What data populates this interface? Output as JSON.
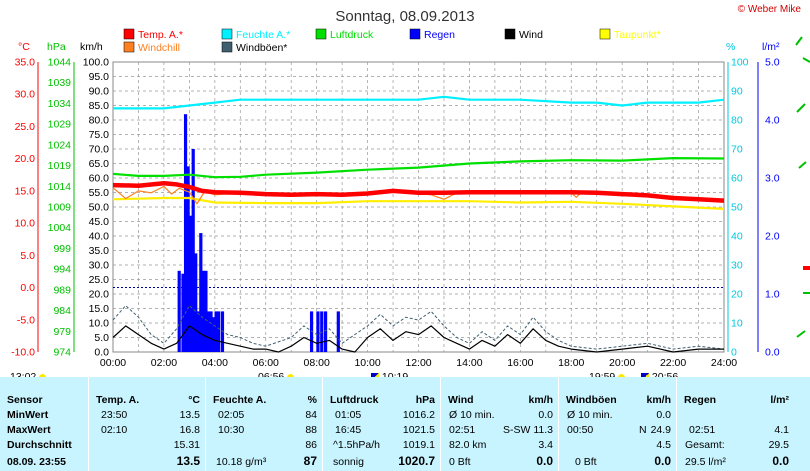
{
  "header": {
    "title": "Sonntag, 08.09.2013",
    "copyright": "© Weber Mike"
  },
  "axis_units": {
    "temp": "°C",
    "pressure": "hPa",
    "wind": "km/h",
    "humidity": "%",
    "rain": "l/m²"
  },
  "legend": [
    {
      "label": "Temp. A.*",
      "color": "#ff0000"
    },
    {
      "label": "Feuchte A.*",
      "color": "#00f0ff"
    },
    {
      "label": "Luftdruck",
      "color": "#00e000"
    },
    {
      "label": "Regen",
      "color": "#0000ff"
    },
    {
      "label": "Wind",
      "color": "#000000"
    },
    {
      "label": "Taupunkt*",
      "color": "#ffff00"
    },
    {
      "label": "Windchill",
      "color": "#ff8020"
    },
    {
      "label": "Windböen*",
      "color": "#406070"
    }
  ],
  "markers": {
    "sunrise": "06:56",
    "sunset": "19:59",
    "moonrise": "10:19",
    "moonset": "20:56",
    "left_time": "13:02"
  },
  "chart_data": {
    "type": "line",
    "title": "Sonntag, 08.09.2013",
    "x_ticks": [
      "00:00",
      "02:00",
      "04:00",
      "06:00",
      "08:00",
      "10:00",
      "12:00",
      "14:00",
      "16:00",
      "18:00",
      "20:00",
      "22:00",
      "24:00"
    ],
    "x_range_hours": [
      0,
      24
    ],
    "axes": {
      "temp": {
        "unit": "°C",
        "range": [
          -10,
          35
        ],
        "ticks": [
          -10,
          -5,
          0,
          5,
          10,
          15,
          20,
          25,
          30,
          35
        ]
      },
      "pressure": {
        "unit": "hPa",
        "range": [
          974,
          1044
        ],
        "ticks": [
          974,
          979,
          984,
          989,
          994,
          999,
          1004,
          1009,
          1014,
          1019,
          1024,
          1029,
          1034,
          1039,
          1044
        ]
      },
      "wind": {
        "unit": "km/h",
        "range": [
          0,
          100
        ],
        "ticks": [
          0,
          5,
          10,
          15,
          20,
          25,
          30,
          35,
          40,
          45,
          50,
          55,
          60,
          65,
          70,
          75,
          80,
          85,
          90,
          95,
          100
        ]
      },
      "humidity": {
        "unit": "%",
        "range": [
          0,
          100
        ],
        "ticks": [
          0,
          10,
          20,
          30,
          40,
          50,
          60,
          70,
          80,
          90,
          100
        ]
      },
      "rain": {
        "unit": "l/m²",
        "range": [
          0,
          5
        ],
        "ticks": [
          "0.0",
          "1.0",
          "2.0",
          "3.0",
          "4.0",
          "5.0"
        ]
      }
    },
    "grid": true,
    "series": [
      {
        "name": "Temp. A.*",
        "axis": "temp",
        "color": "#ff0000",
        "points": [
          [
            0,
            15.9
          ],
          [
            1,
            15.8
          ],
          [
            2,
            16.2
          ],
          [
            2.5,
            16.0
          ],
          [
            3,
            15.6
          ],
          [
            3.5,
            15.0
          ],
          [
            4,
            14.8
          ],
          [
            5,
            14.7
          ],
          [
            6,
            14.5
          ],
          [
            7,
            14.4
          ],
          [
            8,
            14.5
          ],
          [
            9,
            14.4
          ],
          [
            10,
            14.6
          ],
          [
            11,
            15.0
          ],
          [
            12,
            14.7
          ],
          [
            13,
            14.7
          ],
          [
            14,
            14.8
          ],
          [
            15,
            14.8
          ],
          [
            16,
            14.8
          ],
          [
            17,
            14.8
          ],
          [
            18,
            14.8
          ],
          [
            19,
            14.7
          ],
          [
            20,
            14.5
          ],
          [
            21,
            14.3
          ],
          [
            22,
            13.9
          ],
          [
            23,
            13.7
          ],
          [
            24,
            13.5
          ]
        ]
      },
      {
        "name": "Windchill",
        "axis": "temp",
        "color": "#ff8020",
        "points": [
          [
            0,
            15.5
          ],
          [
            0.5,
            13.8
          ],
          [
            1,
            15.0
          ],
          [
            1.5,
            14.7
          ],
          [
            2,
            15.7
          ],
          [
            2.3,
            14.5
          ],
          [
            2.6,
            15.4
          ],
          [
            3,
            14.8
          ],
          [
            3.3,
            13.0
          ],
          [
            3.6,
            14.9
          ],
          [
            4,
            14.4
          ],
          [
            5,
            14.7
          ],
          [
            6,
            14.5
          ],
          [
            7,
            14.4
          ],
          [
            8,
            14.5
          ],
          [
            9,
            14.4
          ],
          [
            10,
            14.6
          ],
          [
            11,
            14.9
          ],
          [
            12.5,
            14.4
          ],
          [
            13,
            13.7
          ],
          [
            13.5,
            14.7
          ],
          [
            14,
            14.8
          ],
          [
            16,
            14.8
          ],
          [
            18,
            14.7
          ],
          [
            18.2,
            14.0
          ],
          [
            18.4,
            14.8
          ],
          [
            20,
            14.5
          ],
          [
            22,
            13.9
          ],
          [
            24,
            13.5
          ]
        ]
      },
      {
        "name": "Taupunkt*",
        "axis": "temp",
        "color": "#ffee00",
        "points": [
          [
            0,
            13.7
          ],
          [
            2,
            13.9
          ],
          [
            3,
            13.9
          ],
          [
            4,
            13.2
          ],
          [
            6,
            13.1
          ],
          [
            8,
            13.1
          ],
          [
            10,
            13.4
          ],
          [
            12,
            13.4
          ],
          [
            14,
            13.4
          ],
          [
            16,
            13.2
          ],
          [
            18,
            13.3
          ],
          [
            20,
            13.0
          ],
          [
            22,
            12.6
          ],
          [
            24,
            12.2
          ]
        ]
      },
      {
        "name": "Feuchte A.*",
        "axis": "humidity",
        "color": "#00f0ff",
        "points": [
          [
            0,
            84
          ],
          [
            1,
            84
          ],
          [
            2,
            84
          ],
          [
            3,
            85
          ],
          [
            4,
            86
          ],
          [
            5,
            87
          ],
          [
            6,
            87
          ],
          [
            8,
            87
          ],
          [
            10,
            87
          ],
          [
            12,
            87
          ],
          [
            13,
            88
          ],
          [
            14,
            87
          ],
          [
            16,
            87
          ],
          [
            18,
            86
          ],
          [
            19,
            86
          ],
          [
            20,
            85
          ],
          [
            21,
            86
          ],
          [
            22,
            86
          ],
          [
            23,
            86
          ],
          [
            24,
            87
          ]
        ]
      },
      {
        "name": "Luftdruck",
        "axis": "pressure",
        "color": "#00e000",
        "points": [
          [
            0,
            1017.0
          ],
          [
            1,
            1016.5
          ],
          [
            2,
            1016.5
          ],
          [
            3,
            1016.8
          ],
          [
            4,
            1016.2
          ],
          [
            5,
            1016.3
          ],
          [
            6,
            1016.8
          ],
          [
            8,
            1017.3
          ],
          [
            10,
            1018.0
          ],
          [
            12,
            1018.5
          ],
          [
            14,
            1019.5
          ],
          [
            16,
            1020.0
          ],
          [
            18,
            1020.3
          ],
          [
            20,
            1020.2
          ],
          [
            22,
            1020.8
          ],
          [
            24,
            1020.7
          ]
        ]
      },
      {
        "name": "Wind",
        "axis": "wind",
        "color": "#000000",
        "points": [
          [
            0,
            5
          ],
          [
            0.5,
            9
          ],
          [
            1,
            6
          ],
          [
            1.5,
            3
          ],
          [
            2,
            1
          ],
          [
            2.5,
            3
          ],
          [
            3,
            9
          ],
          [
            3.5,
            6
          ],
          [
            4,
            4
          ],
          [
            4.5,
            3
          ],
          [
            5,
            2
          ],
          [
            5.5,
            1
          ],
          [
            6,
            1
          ],
          [
            6.5,
            0
          ],
          [
            7,
            2
          ],
          [
            7.5,
            5
          ],
          [
            8,
            3
          ],
          [
            8.5,
            4
          ],
          [
            9,
            1
          ],
          [
            9.5,
            0
          ],
          [
            10,
            5
          ],
          [
            10.5,
            8
          ],
          [
            11,
            4
          ],
          [
            11.5,
            7
          ],
          [
            12,
            6
          ],
          [
            12.5,
            9
          ],
          [
            13,
            5
          ],
          [
            13.5,
            3
          ],
          [
            14,
            1
          ],
          [
            14.5,
            4
          ],
          [
            15,
            2
          ],
          [
            15.5,
            6
          ],
          [
            16,
            3
          ],
          [
            16.5,
            8
          ],
          [
            17,
            4
          ],
          [
            17.5,
            2
          ],
          [
            18,
            1
          ],
          [
            19,
            0
          ],
          [
            20,
            1
          ],
          [
            21,
            2
          ],
          [
            22,
            0
          ],
          [
            23,
            1
          ],
          [
            24,
            1
          ]
        ]
      },
      {
        "name": "Windböen*",
        "axis": "wind",
        "color": "#406070",
        "points": [
          [
            0,
            11
          ],
          [
            0.5,
            16
          ],
          [
            1,
            12
          ],
          [
            1.5,
            6
          ],
          [
            2,
            3
          ],
          [
            2.5,
            8
          ],
          [
            3,
            16
          ],
          [
            3.5,
            12
          ],
          [
            4,
            9
          ],
          [
            4.5,
            6
          ],
          [
            5,
            5
          ],
          [
            5.5,
            3
          ],
          [
            6,
            2
          ],
          [
            7,
            5
          ],
          [
            7.5,
            9
          ],
          [
            8,
            6
          ],
          [
            8.5,
            8
          ],
          [
            9,
            3
          ],
          [
            10,
            9
          ],
          [
            10.5,
            13
          ],
          [
            11,
            9
          ],
          [
            11.5,
            12
          ],
          [
            12,
            11
          ],
          [
            12.5,
            14
          ],
          [
            13,
            9
          ],
          [
            13.5,
            5
          ],
          [
            14,
            3
          ],
          [
            14.5,
            7
          ],
          [
            15,
            4
          ],
          [
            15.5,
            9
          ],
          [
            16,
            6
          ],
          [
            16.5,
            12
          ],
          [
            17,
            7
          ],
          [
            17.5,
            4
          ],
          [
            18,
            2
          ],
          [
            19,
            1
          ],
          [
            20,
            2
          ],
          [
            21,
            3
          ],
          [
            22,
            1
          ],
          [
            23,
            2
          ],
          [
            24,
            1
          ]
        ]
      },
      {
        "name": "Regen",
        "axis": "rain",
        "type": "bar",
        "color": "#0000ff",
        "points": [
          [
            2.6,
            1.4
          ],
          [
            2.75,
            1.35
          ],
          [
            2.85,
            4.1
          ],
          [
            2.95,
            3.2
          ],
          [
            3.05,
            2.35
          ],
          [
            3.15,
            3.5
          ],
          [
            3.25,
            1.7
          ],
          [
            3.35,
            0.7
          ],
          [
            3.45,
            2.05
          ],
          [
            3.55,
            1.4
          ],
          [
            3.65,
            1.4
          ],
          [
            3.75,
            0.7
          ],
          [
            3.85,
            0.7
          ],
          [
            3.95,
            0.6
          ],
          [
            4.05,
            0.7
          ],
          [
            4.15,
            0.7
          ],
          [
            4.3,
            0.7
          ],
          [
            7.8,
            0.7
          ],
          [
            8.05,
            0.7
          ],
          [
            8.2,
            0.7
          ],
          [
            8.35,
            0.7
          ],
          [
            8.85,
            0.7
          ]
        ]
      }
    ]
  },
  "table": {
    "headers": {
      "sensor": "Sensor",
      "temp": "Temp. A.",
      "temp_unit": "°C",
      "hum": "Feuchte A.",
      "hum_unit": "%",
      "press": "Luftdruck",
      "press_unit": "hPa",
      "wind": "Wind",
      "wind_unit": "km/h",
      "gust": "Windböen",
      "gust_unit": "km/h",
      "rain": "Regen",
      "rain_unit": "l/m²"
    },
    "rows": {
      "min_label": "MinWert",
      "max_label": "MaxWert",
      "avg_label": "Durchschnitt",
      "cur_label": "08.09. 23:55"
    },
    "temp": {
      "min_time": "23:50",
      "min_val": "13.5",
      "max_time": "02:10",
      "max_val": "16.8",
      "avg": "15.31",
      "cur": "13.5"
    },
    "hum": {
      "min_time": "02:05",
      "min_val": "84",
      "max_time": "10:30",
      "max_val": "88",
      "avg": "86",
      "cur_extra": "10.18 g/m³",
      "cur": "87"
    },
    "press": {
      "min_time": "01:05",
      "min_val": "1016.2",
      "max_time": "16:45",
      "max_val": "1021.5",
      "avg_label": "^1.5hPa/h",
      "avg": "1019.1",
      "cur_label": "sonnig",
      "cur": "1020.7"
    },
    "wind": {
      "r1_label": "Ø 10 min.",
      "r1_val": "0.0",
      "r2_time": "02:51",
      "r2_dir": "S-SW",
      "r2_val": "11.3",
      "r3_label": "82.0 km",
      "r3_val": "3.4",
      "r4_label": "0 Bft",
      "r4_val": "0.0"
    },
    "gust": {
      "r1_label": "Ø 10 min.",
      "r1_val": "0.0",
      "r2_time": "00:50",
      "r2_dir": "N",
      "r2_val": "24.9",
      "r3_val": "4.5",
      "r4_label": "0 Bft",
      "r4_val": "0.0"
    },
    "rain": {
      "r2_time": "02:51",
      "r2_val": "4.1",
      "r3_label": "Gesamt:",
      "r3_val": "29.5",
      "r4_label": "29.5 l/m²",
      "r4_val": "0.0"
    }
  }
}
